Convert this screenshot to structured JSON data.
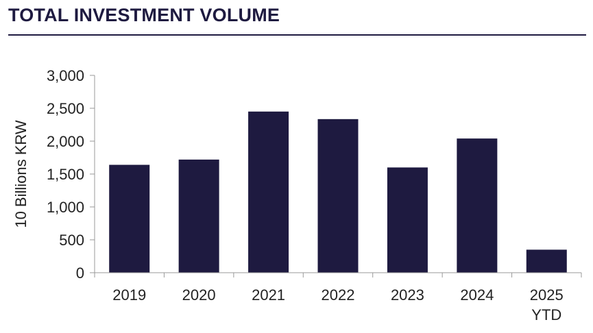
{
  "header": {
    "title": "TOTAL INVESTMENT VOLUME"
  },
  "chart_data": {
    "type": "bar",
    "title": "TOTAL INVESTMENT VOLUME",
    "xlabel": "",
    "ylabel": "10 Billions KRW",
    "categories": [
      [
        "2019"
      ],
      [
        "2020"
      ],
      [
        "2021"
      ],
      [
        "2022"
      ],
      [
        "2023"
      ],
      [
        "2024"
      ],
      [
        "2025",
        "YTD"
      ]
    ],
    "values": [
      1640,
      1720,
      2450,
      2335,
      1600,
      2040,
      350
    ],
    "ylim": [
      0,
      3000
    ],
    "yticks": [
      0,
      500,
      1000,
      1500,
      2000,
      2500,
      3000
    ],
    "ytick_labels": [
      "0",
      "500",
      "1,000",
      "1,500",
      "2,000",
      "2,500",
      "3,000"
    ],
    "grid": false,
    "legend": "none",
    "bar_color": "#1e1a40",
    "axis_color": "#999999"
  }
}
